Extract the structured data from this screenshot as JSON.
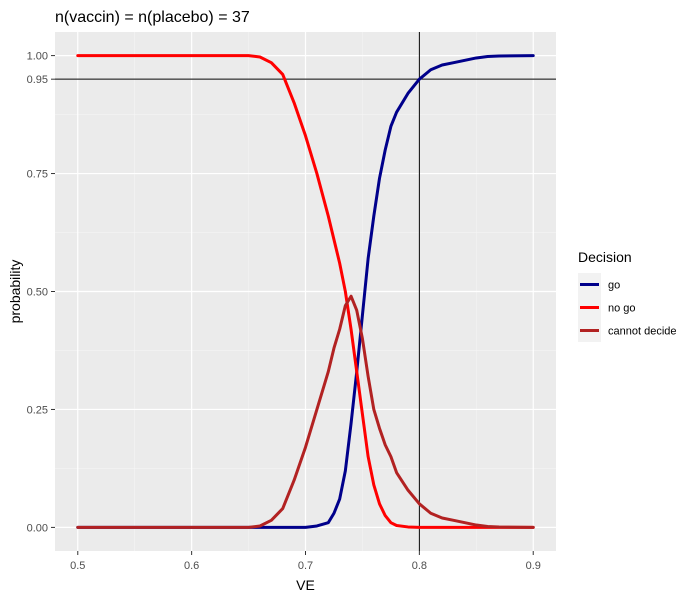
{
  "chart_data": {
    "type": "line",
    "title": "n(vaccin) = n(placebo) = 37",
    "xlabel": "VE",
    "ylabel": "probability",
    "xlim": [
      0.48,
      0.92
    ],
    "ylim": [
      -0.05,
      1.05
    ],
    "x_ticks": [
      0.5,
      0.6,
      0.7,
      0.8,
      0.9
    ],
    "x_tick_labels": [
      "0.5",
      "0.6",
      "0.7",
      "0.8",
      "0.9"
    ],
    "y_ticks": [
      0.0,
      0.25,
      0.5,
      0.75,
      0.95,
      1.0
    ],
    "y_tick_labels": [
      "0.00",
      "0.25",
      "0.50",
      "0.75",
      "0.95",
      "1.00"
    ],
    "grid": true,
    "reference_lines": {
      "vertical_x": 0.8,
      "horizontal_y": 0.95
    },
    "legend": {
      "title": "Decision",
      "position": "right"
    },
    "x": [
      0.5,
      0.55,
      0.6,
      0.62,
      0.64,
      0.65,
      0.66,
      0.67,
      0.68,
      0.69,
      0.7,
      0.71,
      0.72,
      0.725,
      0.73,
      0.735,
      0.74,
      0.745,
      0.75,
      0.755,
      0.76,
      0.765,
      0.77,
      0.775,
      0.78,
      0.79,
      0.8,
      0.81,
      0.82,
      0.83,
      0.84,
      0.85,
      0.86,
      0.87,
      0.9
    ],
    "series": [
      {
        "name": "go",
        "color": "#00008B",
        "values": [
          0,
          0,
          0,
          0,
          0,
          0,
          0,
          0,
          0,
          0,
          0,
          0.003,
          0.01,
          0.03,
          0.06,
          0.12,
          0.22,
          0.33,
          0.45,
          0.57,
          0.66,
          0.74,
          0.8,
          0.85,
          0.88,
          0.92,
          0.95,
          0.97,
          0.98,
          0.985,
          0.99,
          0.995,
          0.998,
          0.999,
          1.0
        ]
      },
      {
        "name": "no go",
        "color": "#FF0000",
        "values": [
          1,
          1,
          1,
          1,
          1,
          1.0,
          0.997,
          0.985,
          0.96,
          0.9,
          0.83,
          0.75,
          0.66,
          0.61,
          0.56,
          0.5,
          0.42,
          0.33,
          0.24,
          0.15,
          0.09,
          0.05,
          0.025,
          0.01,
          0.004,
          0.001,
          0,
          0,
          0,
          0,
          0,
          0,
          0,
          0,
          0
        ]
      },
      {
        "name": "cannot decide",
        "color": "#B22222",
        "values": [
          0,
          0,
          0,
          0,
          0,
          0.0,
          0.003,
          0.015,
          0.04,
          0.1,
          0.17,
          0.25,
          0.33,
          0.38,
          0.42,
          0.47,
          0.49,
          0.46,
          0.4,
          0.32,
          0.25,
          0.21,
          0.175,
          0.15,
          0.116,
          0.079,
          0.05,
          0.03,
          0.02,
          0.015,
          0.01,
          0.005,
          0.002,
          0.001,
          0
        ]
      }
    ]
  }
}
